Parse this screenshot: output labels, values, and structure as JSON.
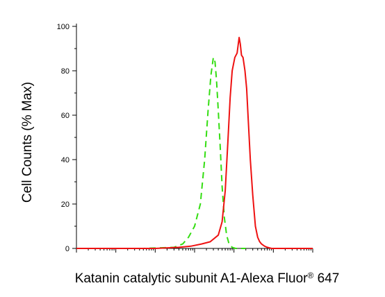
{
  "chart_data": {
    "type": "line",
    "title": "",
    "ylabel": "Cell Counts (% Max)",
    "xlabel": {
      "main": "Katanin catalytic subunit A1-Alexa Fluor",
      "superscript": "®",
      "suffix": " 647"
    },
    "x_scale": "log",
    "xlim": [
      1,
      1000000
    ],
    "ylim": [
      0,
      100
    ],
    "y_ticks": [
      0,
      20,
      40,
      60,
      80,
      100
    ],
    "y_tick_labels": [
      "0",
      "20",
      "40",
      "60",
      "80",
      "100"
    ],
    "grid": false,
    "series": [
      {
        "style": "dashed",
        "color": "#33dd11",
        "x": [
          1,
          50,
          300,
          500,
          700,
          1000,
          1400,
          1800,
          2200,
          2600,
          3000,
          3300,
          3600,
          4000,
          4500,
          5000,
          5700,
          6500,
          7500,
          9000,
          11000,
          14000,
          20000
        ],
        "y": [
          0,
          0,
          0.5,
          2,
          5,
          10,
          20,
          40,
          62,
          78,
          86,
          84,
          76,
          62,
          45,
          28,
          14,
          6,
          2,
          0.5,
          0,
          0,
          0
        ]
      },
      {
        "style": "solid",
        "color": "#ee1111",
        "x": [
          1,
          100,
          400,
          800,
          1500,
          2500,
          4000,
          5000,
          6000,
          7000,
          8000,
          9000,
          10500,
          12000,
          13500,
          14500,
          15500,
          17000,
          19000,
          21000,
          23000,
          26000,
          30000,
          35000,
          40000,
          45000,
          50000,
          60000,
          70000,
          90000,
          150000,
          1000000
        ],
        "y": [
          0,
          0,
          0.5,
          1,
          2,
          3,
          6,
          12,
          26,
          48,
          68,
          80,
          86,
          88,
          95,
          92,
          87,
          86,
          80,
          72,
          58,
          40,
          24,
          10,
          5,
          3,
          2,
          1,
          0.5,
          0,
          0,
          0
        ]
      }
    ]
  }
}
